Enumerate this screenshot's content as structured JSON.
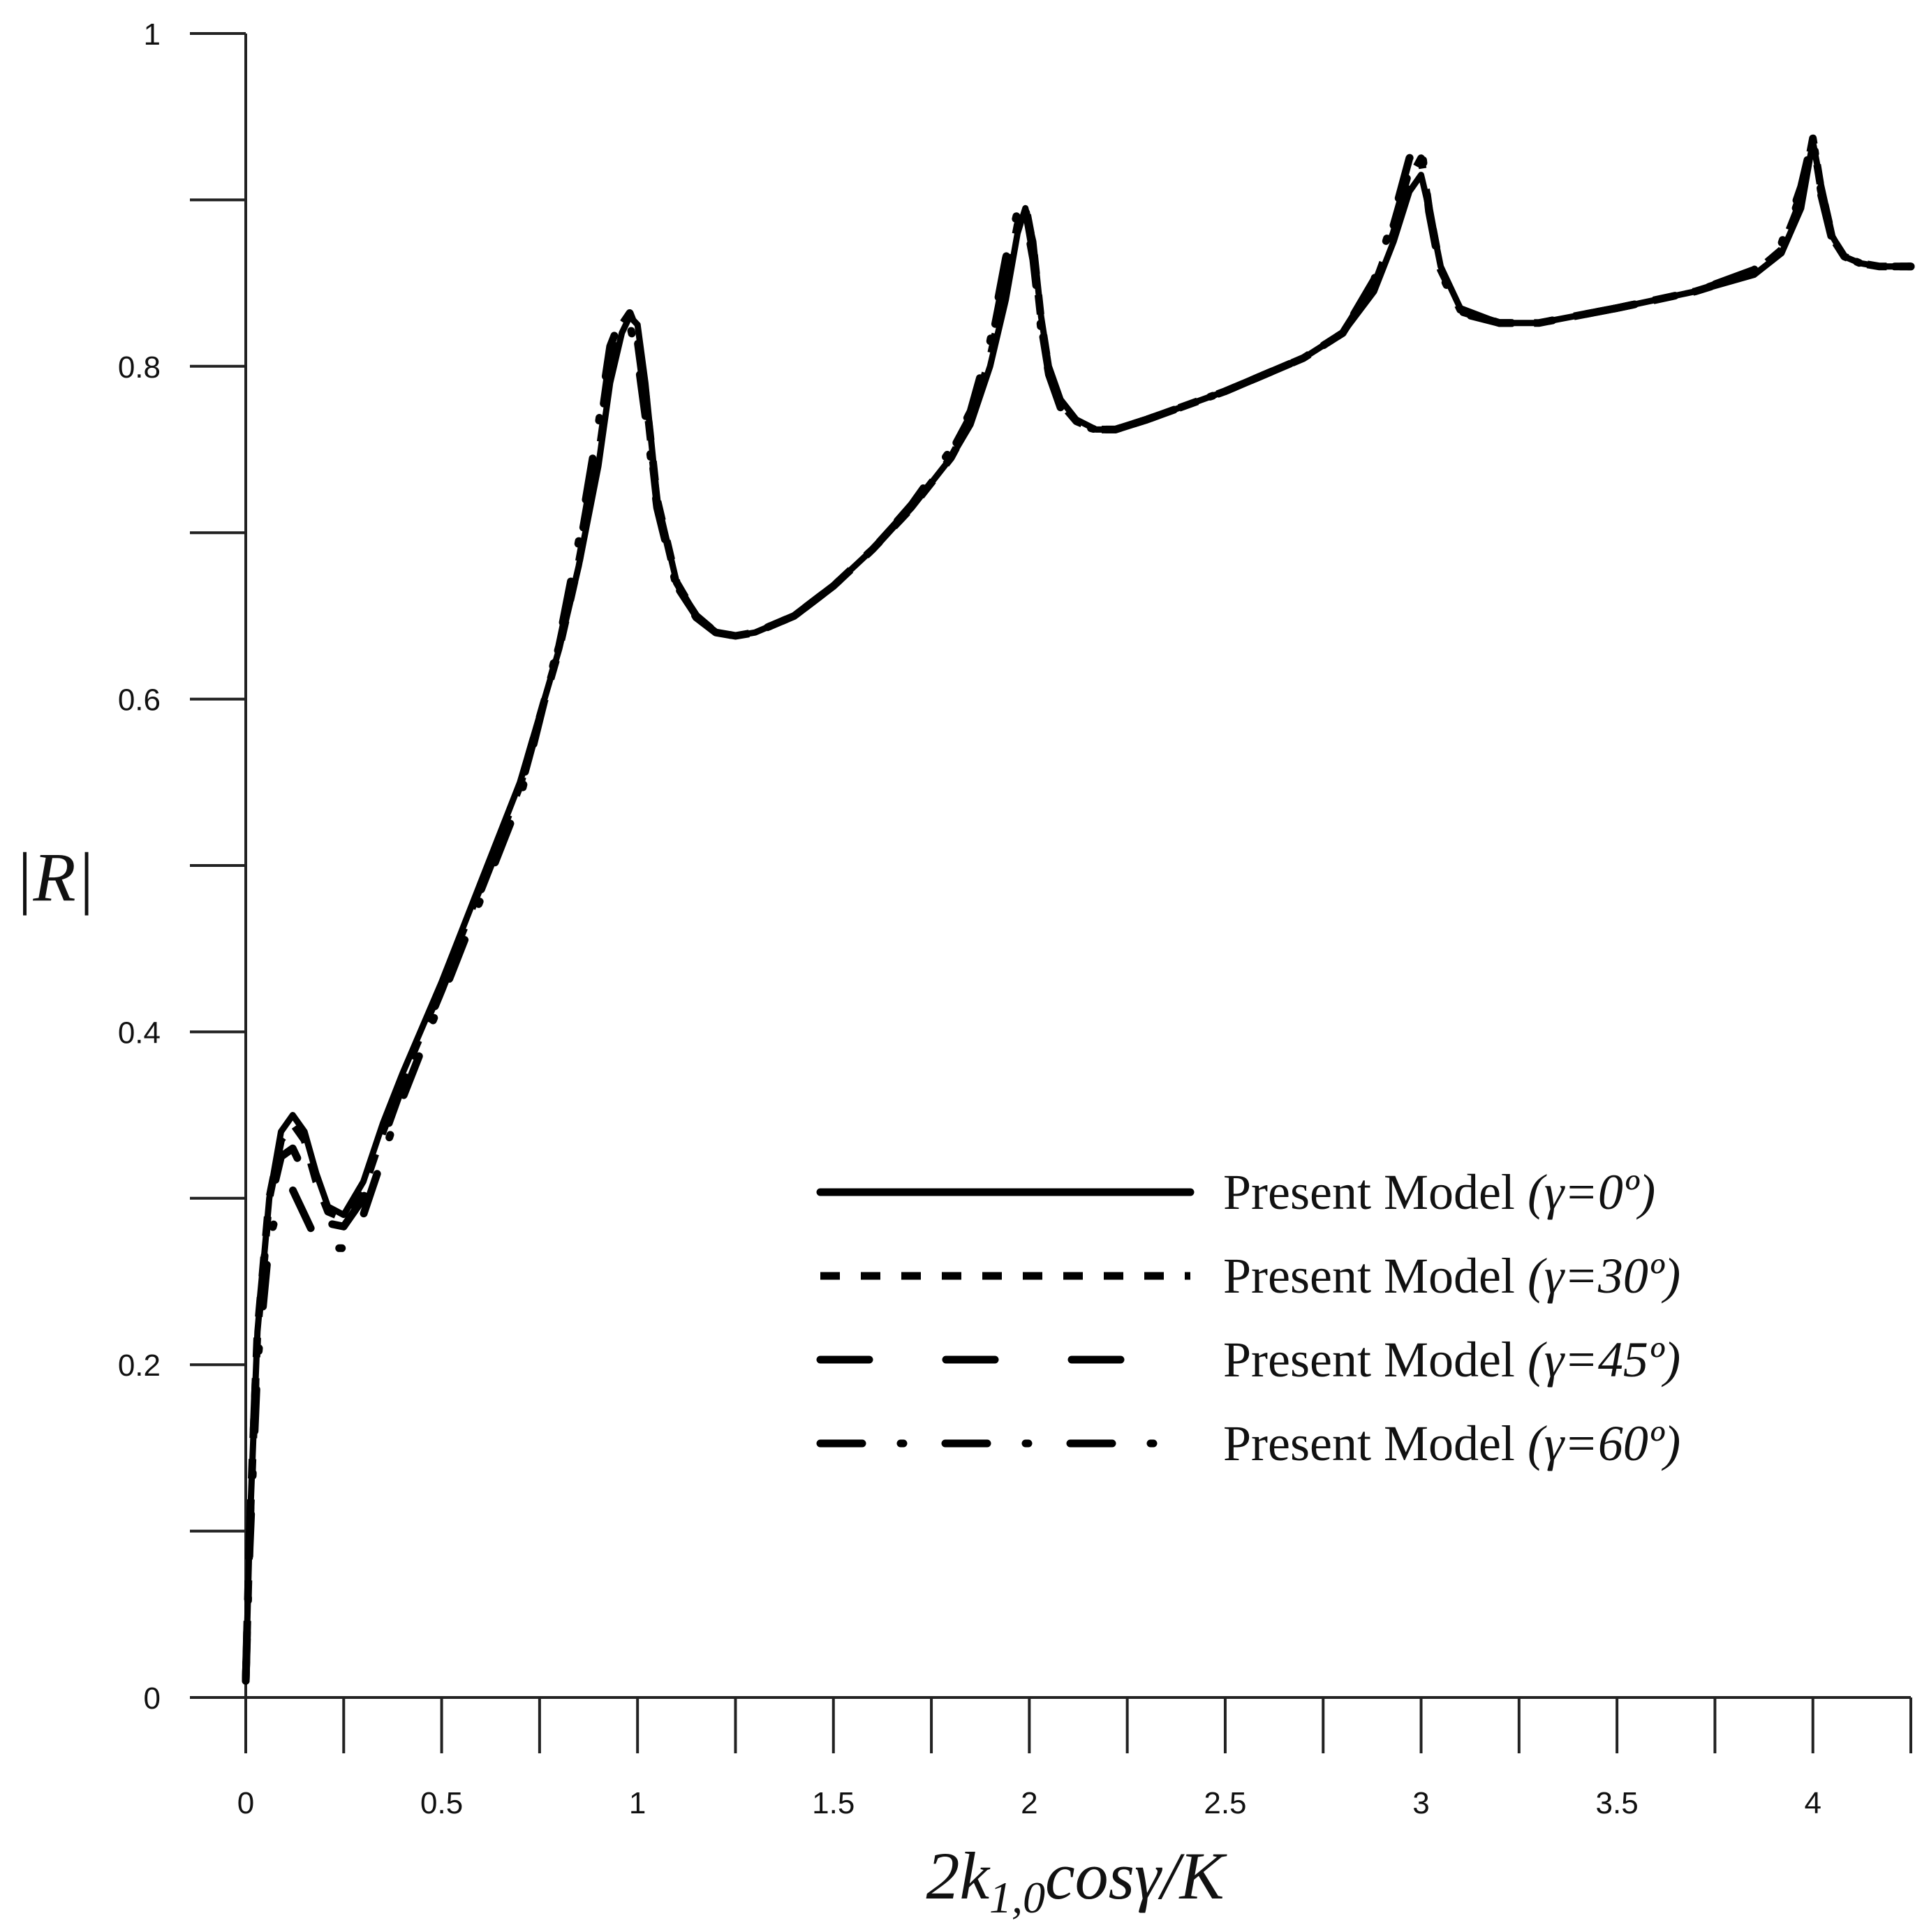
{
  "chart_data": {
    "type": "line",
    "title": "",
    "xlabel": "2k1,0cosγ/K",
    "xlabel_parts": {
      "lead": "2k",
      "sub": "1,0",
      "trail": "cosγ/K"
    },
    "ylabel": "|R|",
    "xlim": [
      0,
      4.25
    ],
    "ylim": [
      0,
      1
    ],
    "x_ticks": [
      0,
      0.5,
      1,
      1.5,
      2,
      2.5,
      3,
      3.5,
      4
    ],
    "x_tick_labels": [
      "0",
      "0.5",
      "1",
      "1.5",
      "2",
      "2.5",
      "3",
      "3.5",
      "4"
    ],
    "y_ticks": [
      0,
      0.1,
      0.2,
      0.3,
      0.4,
      0.5,
      0.6,
      0.7,
      0.8,
      0.9,
      1.0
    ],
    "y_tick_labels": [
      "0",
      "",
      "0.2",
      "",
      "0.4",
      "",
      "0.6",
      "",
      "0.8",
      "",
      "1"
    ],
    "grid": false,
    "legend_position": "center-right",
    "series": [
      {
        "name": "Present Model (γ=0º)",
        "label_main": "Present Model ",
        "label_param": "(γ=0º)",
        "dash": "solid",
        "x": [
          0,
          0.01,
          0.03,
          0.06,
          0.09,
          0.12,
          0.15,
          0.18,
          0.21,
          0.25,
          0.3,
          0.35,
          0.4,
          0.5,
          0.6,
          0.7,
          0.8,
          0.85,
          0.9,
          0.93,
          0.96,
          0.98,
          1.0,
          1.02,
          1.05,
          1.1,
          1.15,
          1.2,
          1.25,
          1.3,
          1.4,
          1.5,
          1.6,
          1.7,
          1.8,
          1.85,
          1.9,
          1.94,
          1.97,
          1.99,
          2.01,
          2.03,
          2.05,
          2.08,
          2.12,
          2.17,
          2.22,
          2.3,
          2.5,
          2.7,
          2.8,
          2.88,
          2.93,
          2.97,
          3.0,
          3.02,
          3.05,
          3.1,
          3.2,
          3.3,
          3.5,
          3.7,
          3.85,
          3.92,
          3.97,
          4.0,
          4.02,
          4.05,
          4.08,
          4.12,
          4.17,
          4.25
        ],
        "y": [
          0.01,
          0.1,
          0.22,
          0.3,
          0.34,
          0.35,
          0.34,
          0.315,
          0.295,
          0.29,
          0.31,
          0.345,
          0.375,
          0.43,
          0.49,
          0.55,
          0.63,
          0.68,
          0.74,
          0.79,
          0.82,
          0.83,
          0.825,
          0.79,
          0.72,
          0.67,
          0.65,
          0.64,
          0.638,
          0.64,
          0.65,
          0.668,
          0.69,
          0.715,
          0.745,
          0.765,
          0.8,
          0.84,
          0.88,
          0.895,
          0.875,
          0.83,
          0.8,
          0.78,
          0.768,
          0.762,
          0.762,
          0.768,
          0.785,
          0.805,
          0.82,
          0.845,
          0.875,
          0.905,
          0.915,
          0.895,
          0.86,
          0.835,
          0.826,
          0.826,
          0.835,
          0.845,
          0.855,
          0.868,
          0.895,
          0.935,
          0.91,
          0.878,
          0.866,
          0.862,
          0.86,
          0.86
        ]
      },
      {
        "name": "Present Model (γ=30º)",
        "label_main": "Present Model ",
        "label_param": "(γ=30º)",
        "dash": "dotted",
        "x": [
          0,
          0.01,
          0.03,
          0.06,
          0.09,
          0.12,
          0.15,
          0.18,
          0.21,
          0.25,
          0.3,
          0.35,
          0.4,
          0.5,
          0.6,
          0.7,
          0.8,
          0.85,
          0.9,
          0.93,
          0.96,
          0.98,
          1.0,
          1.02,
          1.05,
          1.1,
          1.15,
          1.2,
          1.25,
          1.3,
          1.4,
          1.5,
          1.6,
          1.7,
          1.8,
          1.85,
          1.9,
          1.94,
          1.97,
          1.99,
          2.01,
          2.03,
          2.05,
          2.08,
          2.12,
          2.17,
          2.22,
          2.3,
          2.5,
          2.7,
          2.8,
          2.88,
          2.93,
          2.97,
          3.0,
          3.02,
          3.05,
          3.1,
          3.2,
          3.3,
          3.5,
          3.7,
          3.85,
          3.92,
          3.97,
          4.0,
          4.02,
          4.05,
          4.08,
          4.12,
          4.17,
          4.25
        ],
        "y": [
          0.01,
          0.1,
          0.22,
          0.3,
          0.335,
          0.345,
          0.335,
          0.31,
          0.292,
          0.288,
          0.305,
          0.34,
          0.372,
          0.428,
          0.488,
          0.548,
          0.63,
          0.682,
          0.745,
          0.795,
          0.825,
          0.832,
          0.82,
          0.785,
          0.72,
          0.67,
          0.65,
          0.64,
          0.638,
          0.64,
          0.65,
          0.668,
          0.69,
          0.715,
          0.745,
          0.767,
          0.805,
          0.848,
          0.885,
          0.897,
          0.872,
          0.828,
          0.798,
          0.778,
          0.767,
          0.762,
          0.762,
          0.768,
          0.785,
          0.805,
          0.82,
          0.848,
          0.88,
          0.912,
          0.925,
          0.895,
          0.858,
          0.834,
          0.826,
          0.826,
          0.835,
          0.845,
          0.856,
          0.87,
          0.9,
          0.937,
          0.908,
          0.877,
          0.866,
          0.862,
          0.86,
          0.86
        ]
      },
      {
        "name": "Present Model (γ=45º)",
        "label_main": "Present Model ",
        "label_param": "(γ=45º)",
        "dash": "long-dash",
        "x": [
          0,
          0.01,
          0.03,
          0.06,
          0.09,
          0.12,
          0.15,
          0.18,
          0.21,
          0.25,
          0.3,
          0.35,
          0.4,
          0.5,
          0.6,
          0.7,
          0.8,
          0.85,
          0.9,
          0.93,
          0.96,
          0.98,
          1.0,
          1.02,
          1.05,
          1.1,
          1.15,
          1.2,
          1.25,
          1.3,
          1.4,
          1.5,
          1.6,
          1.7,
          1.8,
          1.85,
          1.9,
          1.94,
          1.97,
          1.99,
          2.01,
          2.03,
          2.05,
          2.08,
          2.12,
          2.17,
          2.22,
          2.3,
          2.5,
          2.7,
          2.8,
          2.88,
          2.93,
          2.97,
          3.0,
          3.02,
          3.05,
          3.1,
          3.2,
          3.3,
          3.5,
          3.7,
          3.85,
          3.92,
          3.97,
          4.0,
          4.02,
          4.05,
          4.08,
          4.12,
          4.17,
          4.25
        ],
        "y": [
          0.01,
          0.1,
          0.22,
          0.295,
          0.325,
          0.33,
          0.315,
          0.295,
          0.285,
          0.283,
          0.3,
          0.335,
          0.368,
          0.425,
          0.485,
          0.545,
          0.632,
          0.688,
          0.755,
          0.805,
          0.83,
          0.83,
          0.815,
          0.78,
          0.718,
          0.668,
          0.65,
          0.64,
          0.638,
          0.64,
          0.65,
          0.668,
          0.69,
          0.716,
          0.748,
          0.77,
          0.81,
          0.858,
          0.89,
          0.895,
          0.868,
          0.825,
          0.796,
          0.776,
          0.766,
          0.762,
          0.762,
          0.768,
          0.785,
          0.805,
          0.82,
          0.85,
          0.885,
          0.918,
          0.93,
          0.895,
          0.857,
          0.833,
          0.826,
          0.826,
          0.835,
          0.845,
          0.857,
          0.872,
          0.904,
          0.938,
          0.906,
          0.876,
          0.866,
          0.862,
          0.86,
          0.86
        ]
      },
      {
        "name": "Present Model (γ=60º)",
        "label_main": "Present Model ",
        "label_param": "(γ=60º)",
        "dash": "dash-dot",
        "x": [
          0,
          0.01,
          0.03,
          0.06,
          0.09,
          0.12,
          0.15,
          0.18,
          0.21,
          0.25,
          0.3,
          0.35,
          0.4,
          0.5,
          0.6,
          0.7,
          0.8,
          0.85,
          0.9,
          0.93,
          0.96,
          0.98,
          1.0,
          1.02,
          1.05,
          1.1,
          1.15,
          1.2,
          1.25,
          1.3,
          1.4,
          1.5,
          1.6,
          1.7,
          1.8,
          1.85,
          1.9,
          1.94,
          1.97,
          1.99,
          2.01,
          2.03,
          2.05,
          2.08,
          2.12,
          2.17,
          2.22,
          2.3,
          2.5,
          2.7,
          2.8,
          2.88,
          2.93,
          2.97,
          3.0,
          3.02,
          3.05,
          3.1,
          3.2,
          3.3,
          3.5,
          3.7,
          3.85,
          3.92,
          3.97,
          4.0,
          4.02,
          4.05,
          4.08,
          4.12,
          4.17,
          4.25
        ],
        "y": [
          0.01,
          0.09,
          0.2,
          0.275,
          0.3,
          0.305,
          0.29,
          0.275,
          0.27,
          0.27,
          0.29,
          0.325,
          0.36,
          0.42,
          0.48,
          0.54,
          0.635,
          0.695,
          0.765,
          0.812,
          0.83,
          0.825,
          0.805,
          0.77,
          0.715,
          0.667,
          0.649,
          0.64,
          0.638,
          0.64,
          0.65,
          0.668,
          0.69,
          0.717,
          0.75,
          0.773,
          0.815,
          0.865,
          0.893,
          0.89,
          0.864,
          0.822,
          0.795,
          0.775,
          0.765,
          0.762,
          0.762,
          0.768,
          0.785,
          0.805,
          0.82,
          0.852,
          0.89,
          0.925,
          0.935,
          0.893,
          0.856,
          0.832,
          0.826,
          0.826,
          0.835,
          0.845,
          0.858,
          0.874,
          0.908,
          0.938,
          0.904,
          0.875,
          0.866,
          0.862,
          0.86,
          0.86
        ]
      }
    ]
  }
}
